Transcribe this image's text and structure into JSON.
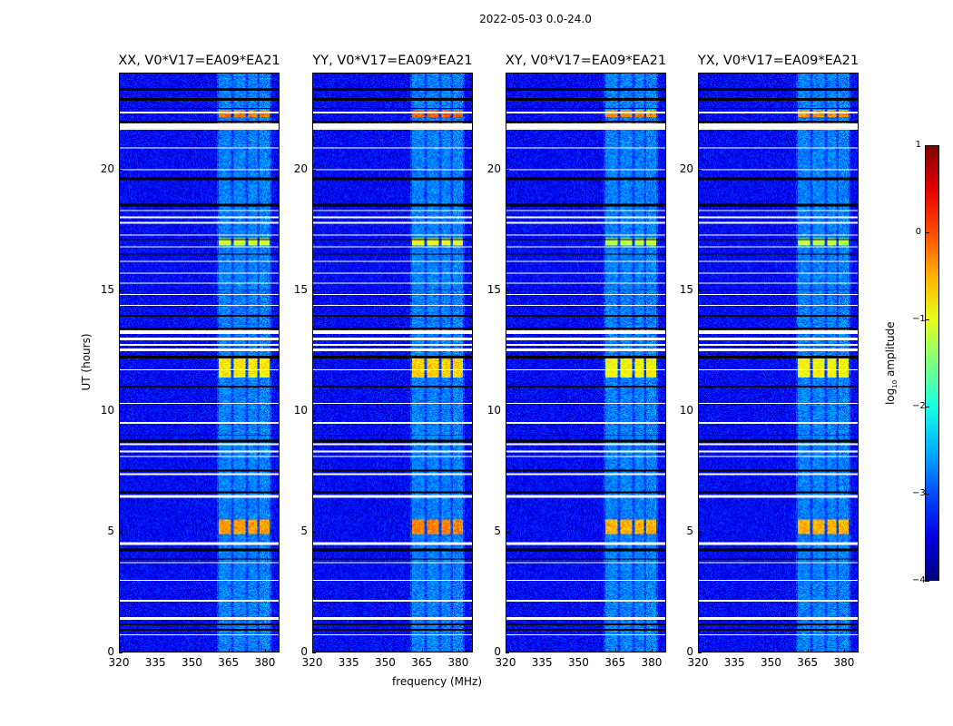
{
  "suptitle": "2022-05-03 0.0-24.0",
  "chart_data": {
    "type": "heatmap",
    "title": "2022-05-03 0.0-24.0",
    "xlabel": "frequency (MHz)",
    "ylabel": "UT (hours)",
    "xlim": [
      320,
      386
    ],
    "ylim": [
      0,
      24
    ],
    "xticks": [
      320,
      335,
      350,
      365,
      380
    ],
    "yticks": [
      0,
      5,
      10,
      15,
      20
    ],
    "panels": [
      {
        "title": "XX, V0*V17=EA09*EA21"
      },
      {
        "title": "YY, V0*V17=EA09*EA21"
      },
      {
        "title": "XY, V0*V17=EA09*EA21"
      },
      {
        "title": "YX, V0*V17=EA09*EA21"
      }
    ],
    "background_log10_amplitude": -3.4,
    "bright_channel_ranges_mhz": [
      [
        361,
        366
      ],
      [
        367,
        372
      ],
      [
        373,
        377
      ],
      [
        378,
        382
      ]
    ],
    "bright_bursts_hours": [
      {
        "range": [
          22.2,
          22.5
        ],
        "peak": -0.3
      },
      {
        "range": [
          16.9,
          17.2
        ],
        "peak": -1.2
      },
      {
        "range": [
          11.4,
          12.2
        ],
        "peak": -0.9
      },
      {
        "range": [
          4.9,
          5.5
        ],
        "peak": -0.5
      }
    ],
    "flagged_white_hours": [
      [
        22.35,
        22.45
      ],
      [
        21.7,
        21.95
      ],
      [
        20.9,
        20.95
      ],
      [
        20.0,
        20.05
      ],
      [
        18.3,
        18.35
      ],
      [
        18.0,
        18.1
      ],
      [
        17.8,
        17.85
      ],
      [
        17.3,
        17.35
      ],
      [
        16.8,
        16.85
      ],
      [
        16.2,
        16.25
      ],
      [
        15.7,
        15.75
      ],
      [
        15.3,
        15.35
      ],
      [
        14.8,
        14.85
      ],
      [
        14.35,
        14.4
      ],
      [
        13.2,
        13.35
      ],
      [
        12.95,
        13.05
      ],
      [
        12.7,
        12.8
      ],
      [
        12.5,
        12.6
      ],
      [
        11.7,
        11.75
      ],
      [
        10.3,
        10.35
      ],
      [
        9.5,
        9.55
      ],
      [
        8.6,
        8.65
      ],
      [
        8.3,
        8.35
      ],
      [
        8.1,
        8.15
      ],
      [
        7.35,
        7.4
      ],
      [
        6.4,
        6.5
      ],
      [
        4.45,
        4.55
      ],
      [
        3.7,
        3.75
      ],
      [
        2.95,
        3.0
      ],
      [
        2.1,
        2.15
      ],
      [
        1.35,
        1.45
      ],
      [
        0.7,
        0.75
      ]
    ],
    "flagged_black_hours": [
      [
        23.3,
        23.4
      ],
      [
        22.9,
        23.0
      ],
      [
        22.55,
        22.6
      ],
      [
        22.0,
        22.05
      ],
      [
        19.6,
        19.7
      ],
      [
        18.5,
        18.6
      ],
      [
        17.1,
        17.15
      ],
      [
        16.5,
        16.55
      ],
      [
        15.0,
        15.05
      ],
      [
        13.9,
        14.0
      ],
      [
        13.4,
        13.45
      ],
      [
        12.2,
        12.3
      ],
      [
        11.0,
        11.05
      ],
      [
        9.0,
        9.05
      ],
      [
        8.7,
        8.8
      ],
      [
        7.5,
        7.55
      ],
      [
        6.6,
        6.65
      ],
      [
        4.2,
        4.3
      ],
      [
        3.85,
        3.9
      ],
      [
        1.1,
        1.2
      ],
      [
        0.9,
        0.95
      ]
    ],
    "colorbar": {
      "label": "log10 amplitude",
      "label_main": "log",
      "label_sub": "10",
      "label_rest": " amplitude",
      "range": [
        -4,
        1
      ],
      "ticks": [
        "1",
        "0",
        "−1",
        "−2",
        "−3",
        "−4"
      ],
      "colormap": "jet"
    }
  }
}
